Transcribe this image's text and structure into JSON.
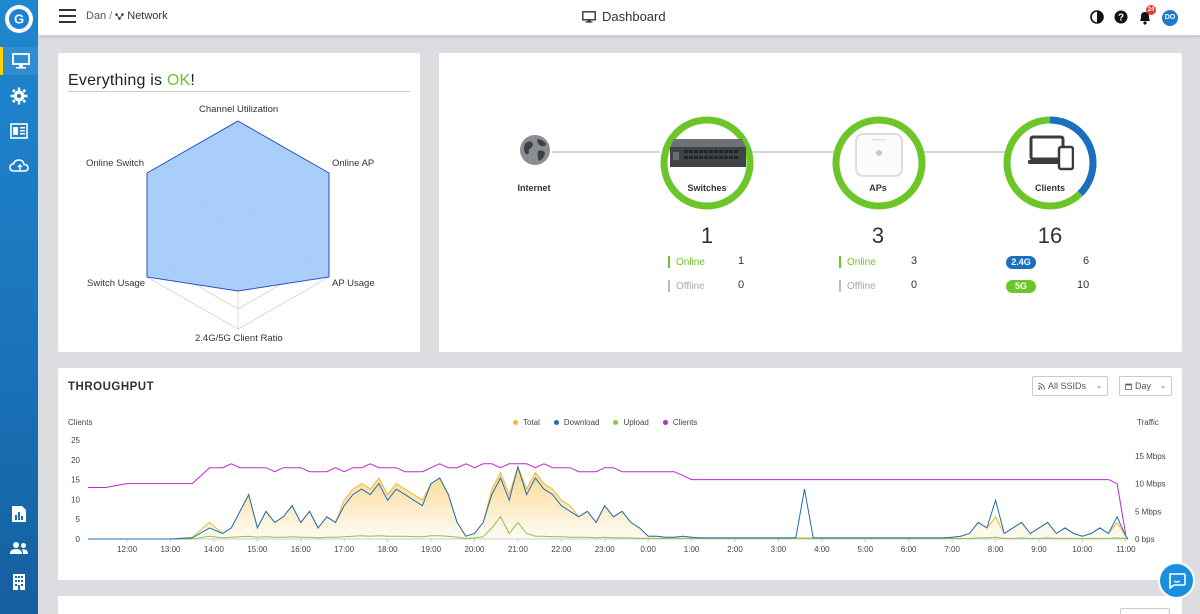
{
  "sidebar": {
    "logo_letter": "G",
    "items": [
      {
        "name": "monitor",
        "icon": "monitor-icon"
      },
      {
        "name": "settings",
        "icon": "gear-icon"
      },
      {
        "name": "devices",
        "icon": "device-list-icon"
      },
      {
        "name": "cloud",
        "icon": "cloud-icon"
      },
      {
        "name": "reports",
        "icon": "report-icon"
      },
      {
        "name": "users",
        "icon": "users-icon"
      },
      {
        "name": "organization",
        "icon": "building-icon"
      }
    ]
  },
  "topbar": {
    "breadcrumb_user": "Dan",
    "breadcrumb_sep": "/",
    "breadcrumb_network": "Network",
    "title": "Dashboard",
    "notification_count": "24",
    "avatar_initials": "DO"
  },
  "health": {
    "title_prefix": "Everything is ",
    "title_ok": "OK",
    "title_suffix": "!",
    "radar_labels": [
      "Channel Utilization",
      "Online AP",
      "AP Usage",
      "2.4G/5G Client Ratio",
      "Switch Usage",
      "Online Switch"
    ]
  },
  "topology": {
    "internet": {
      "label": "Internet"
    },
    "switches": {
      "label": "Switches",
      "count": "1",
      "online_label": "Online",
      "online": "1",
      "offline_label": "Offline",
      "offline": "0"
    },
    "aps": {
      "label": "APs",
      "count": "3",
      "online_label": "Online",
      "online": "3",
      "offline_label": "Offline",
      "offline": "0"
    },
    "clients": {
      "label": "Clients",
      "count": "16",
      "band1_label": "2.4G",
      "band1": "6",
      "band2_label": "5G",
      "band2": "10",
      "share_5g": 0.625
    }
  },
  "throughput": {
    "title": "THROUGHPUT",
    "ssid_filter": "All SSIDs",
    "range_filter": "Day",
    "left_axis_title": "Clients",
    "right_axis_title": "Traffic",
    "colors": {
      "total": "#f5b731",
      "download": "#1f6fb8",
      "upload": "#8bc34a",
      "clients": "#c026d3"
    }
  },
  "chart_data": {
    "type": "line",
    "title": "THROUGHPUT",
    "ylabel": "Clients",
    "y2label": "Traffic",
    "ylim": [
      0,
      25
    ],
    "y_ticks": [
      "0",
      "5",
      "10",
      "15",
      "20",
      "25"
    ],
    "y2_ticks": [
      "0 bps",
      "5 Mbps",
      "10 Mbps",
      "15 Mbps"
    ],
    "y2lim_mbps": [
      0,
      15
    ],
    "x_ticks": [
      "12:00",
      "13:00",
      "14:00",
      "15:00",
      "16:00",
      "17:00",
      "18:00",
      "19:00",
      "20:00",
      "21:00",
      "22:00",
      "23:00",
      "0:00",
      "1:00",
      "2:00",
      "3:00",
      "4:00",
      "5:00",
      "6:00",
      "7:00",
      "8:00",
      "9:00",
      "10:00",
      "11:00"
    ],
    "x_hours": [
      11.1,
      11.5,
      12,
      12.5,
      13,
      13.5,
      13.9,
      14.2,
      14.4,
      14.6,
      14.8,
      15,
      15.2,
      15.4,
      15.6,
      15.8,
      16,
      16.2,
      16.4,
      16.6,
      16.8,
      17,
      17.2,
      17.4,
      17.6,
      17.8,
      18,
      18.2,
      18.4,
      18.6,
      18.8,
      19,
      19.2,
      19.4,
      19.6,
      19.8,
      20,
      20.2,
      20.4,
      20.6,
      20.8,
      21,
      21.2,
      21.4,
      21.6,
      21.8,
      22,
      22.2,
      22.4,
      22.6,
      22.8,
      23,
      23.2,
      23.4,
      23.6,
      23.8,
      24,
      24.2,
      24.4,
      24.6,
      24.8,
      25,
      25.2,
      25.4,
      25.6,
      25.8,
      26,
      26.2,
      26.4,
      26.6,
      26.8,
      27,
      27.2,
      27.4,
      27.6,
      27.8,
      28,
      28.2,
      28.4,
      28.6,
      28.8,
      29,
      29.2,
      29.4,
      29.6,
      29.8,
      30,
      30.2,
      30.4,
      30.6,
      30.8,
      31,
      31.2,
      31.4,
      31.6,
      31.8,
      32,
      32.2,
      32.4,
      32.6,
      32.8,
      33,
      33.2,
      33.4,
      33.6,
      33.8,
      34,
      34.2,
      34.4,
      34.6,
      34.8,
      35,
      35.05
    ],
    "series": [
      {
        "name": "Clients",
        "axis": "left",
        "values": [
          13,
          13,
          14,
          14,
          14,
          14,
          18,
          18,
          19,
          18,
          18,
          18,
          18,
          17,
          18,
          18,
          18,
          17,
          17,
          17,
          18,
          17,
          18,
          18,
          19,
          18,
          18,
          18,
          17,
          17,
          17,
          18,
          19,
          18,
          18,
          19,
          18,
          19,
          19,
          18,
          19,
          19,
          19,
          18,
          19,
          18,
          18,
          18,
          17,
          17,
          17,
          18,
          18,
          17,
          17,
          17,
          17,
          17,
          17,
          17,
          16,
          15,
          15,
          15,
          15,
          15,
          15,
          15,
          15,
          15,
          15,
          15,
          15,
          15,
          15,
          15,
          15,
          15,
          15,
          15,
          15,
          15,
          15,
          15,
          15,
          15,
          15,
          15,
          15,
          15,
          15,
          15,
          15,
          15,
          15,
          15,
          15,
          15,
          15,
          15,
          15,
          15,
          15,
          15,
          15,
          15,
          15,
          15,
          15,
          15,
          14,
          1
        ]
      },
      {
        "name": "Total",
        "axis": "right",
        "values": [
          0,
          0,
          0,
          0,
          0,
          0.3,
          3,
          1,
          2,
          5,
          8,
          2,
          5,
          3,
          4,
          6,
          3,
          5,
          2,
          4,
          3,
          7,
          9,
          10,
          9,
          11,
          8,
          10,
          9,
          8,
          7,
          10,
          11,
          8,
          3,
          0.5,
          1,
          3,
          9,
          12,
          8,
          13,
          9,
          12,
          10,
          9,
          7,
          6,
          4,
          5,
          3,
          6,
          4,
          5,
          3,
          2,
          0.5,
          0.5,
          0.3,
          0.3,
          0.5,
          0.3,
          0.2,
          0.2,
          0.2,
          0.2,
          0.2,
          0.2,
          0.2,
          0.2,
          0.2,
          0.2,
          0.2,
          0.2,
          0.2,
          0.2,
          0.2,
          0.2,
          0.2,
          0.2,
          0.2,
          0.2,
          0.2,
          0.2,
          0.2,
          0.2,
          0.2,
          0.2,
          0.2,
          0.2,
          0.2,
          0.3,
          0.5,
          1,
          3,
          2,
          4,
          1,
          2,
          3,
          1,
          2,
          3,
          1,
          2,
          1,
          0.5,
          1,
          2,
          1,
          3,
          0.5,
          0
        ]
      },
      {
        "name": "Download",
        "axis": "right",
        "values": [
          0,
          0,
          0,
          0,
          0,
          0.2,
          2,
          1,
          2,
          5,
          8,
          2,
          5,
          3,
          4,
          6,
          3,
          5,
          2,
          4,
          3,
          6,
          8,
          9,
          8,
          10,
          7,
          9,
          8,
          7,
          6,
          10,
          11,
          8,
          3,
          0.5,
          1,
          3,
          8,
          11,
          7,
          13,
          8,
          11,
          9,
          8,
          6,
          5,
          4,
          5,
          3,
          6,
          4,
          5,
          3,
          2,
          0.5,
          0.5,
          0.3,
          0.3,
          0.5,
          0.3,
          0.2,
          0.2,
          0.2,
          0.2,
          0.2,
          0.2,
          0.2,
          0.2,
          0.2,
          0.2,
          0.2,
          0.2,
          9,
          0.2,
          0.2,
          0.2,
          0.2,
          0.2,
          0.2,
          0.2,
          0.2,
          0.2,
          0.2,
          0.2,
          0.2,
          0.2,
          0.2,
          0.2,
          0.2,
          0.3,
          0.5,
          1,
          3,
          2,
          7,
          1,
          2,
          3,
          1,
          2,
          3,
          1,
          2,
          1,
          0.5,
          1,
          2,
          1,
          4,
          0.5,
          0
        ]
      },
      {
        "name": "Upload",
        "axis": "right",
        "values": [
          0,
          0,
          0,
          0,
          0,
          0,
          0.5,
          0.2,
          0.3,
          0.4,
          0.5,
          0.3,
          0.4,
          0.3,
          0.3,
          0.4,
          0.3,
          0.3,
          0.2,
          0.3,
          0.3,
          0.4,
          0.5,
          0.6,
          0.5,
          0.6,
          0.5,
          0.5,
          0.5,
          0.4,
          0.4,
          0.6,
          0.6,
          0.5,
          0.3,
          0.1,
          0.2,
          0.4,
          2,
          4,
          1,
          3,
          1,
          0.5,
          0.5,
          0.4,
          0.4,
          0.3,
          0.3,
          0.3,
          0.2,
          0.3,
          0.2,
          0.2,
          0.2,
          0.1,
          0.1,
          0.1,
          0.1,
          0.1,
          0.1,
          0.1,
          0.1,
          0.1,
          0.1,
          0.1,
          0.1,
          0.1,
          0.1,
          0.1,
          0.1,
          0.1,
          0.1,
          0.1,
          0.1,
          0.1,
          0.1,
          0.1,
          0.1,
          0.1,
          0.1,
          0.1,
          0.1,
          0.1,
          0.1,
          0.1,
          0.1,
          0.1,
          0.1,
          0.1,
          0.1,
          0.1,
          0.1,
          0.1,
          0.2,
          0.2,
          0.3,
          0.1,
          0.1,
          0.2,
          0.1,
          0.1,
          0.2,
          0.1,
          0.1,
          0.1,
          0.1,
          0.1,
          0.1,
          0.1,
          0.2,
          0.1,
          0
        ]
      }
    ]
  }
}
